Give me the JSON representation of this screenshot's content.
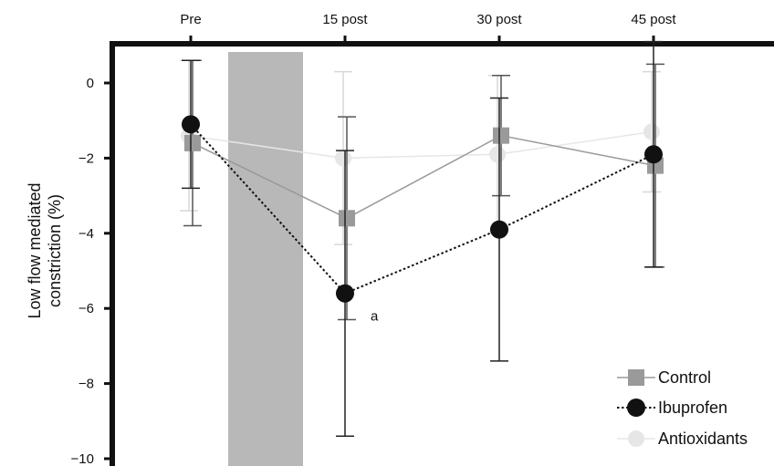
{
  "chart_data": {
    "type": "line",
    "title": "",
    "xlabel": "",
    "ylabel": "Low flow mediated constriction (%)",
    "ylabel_lines": [
      "Low flow mediated",
      "constriction (%)"
    ],
    "categories": [
      "Pre",
      "15 post",
      "30 post",
      "45 post"
    ],
    "x_axis_position": "top",
    "ylim": [
      -10,
      1
    ],
    "yticks": [
      0,
      -2,
      -4,
      -6,
      -8,
      -10
    ],
    "ytick_labels": [
      "0",
      "−2",
      "−4",
      "−6",
      "−8",
      "−10"
    ],
    "grid": false,
    "legend_position": "bottom-right",
    "shaded_interval": {
      "between": [
        "Pre",
        "15 post"
      ],
      "color": "#b8b8b8"
    },
    "series": [
      {
        "name": "Control",
        "values": [
          -1.6,
          -3.6,
          -1.4,
          -2.2
        ],
        "error": [
          2.2,
          2.7,
          1.6,
          2.7
        ],
        "color": "#9a9a9a",
        "marker": "square",
        "line_style": "solid"
      },
      {
        "name": "Ibuprofen",
        "values": [
          -1.1,
          -5.6,
          -3.9,
          -1.9
        ],
        "error": [
          1.7,
          3.8,
          3.5,
          3.0
        ],
        "color": "#111111",
        "marker": "circle",
        "line_style": "dotted"
      },
      {
        "name": "Antioxidants",
        "values": [
          -1.4,
          -2.0,
          -1.9,
          -1.3
        ],
        "error": [
          2.0,
          2.3,
          2.1,
          1.6
        ],
        "color": "#e6e6e6",
        "marker": "circle",
        "line_style": "solid"
      }
    ],
    "annotations": [
      {
        "text": "a",
        "series": "Ibuprofen",
        "category": "15 post"
      }
    ]
  }
}
